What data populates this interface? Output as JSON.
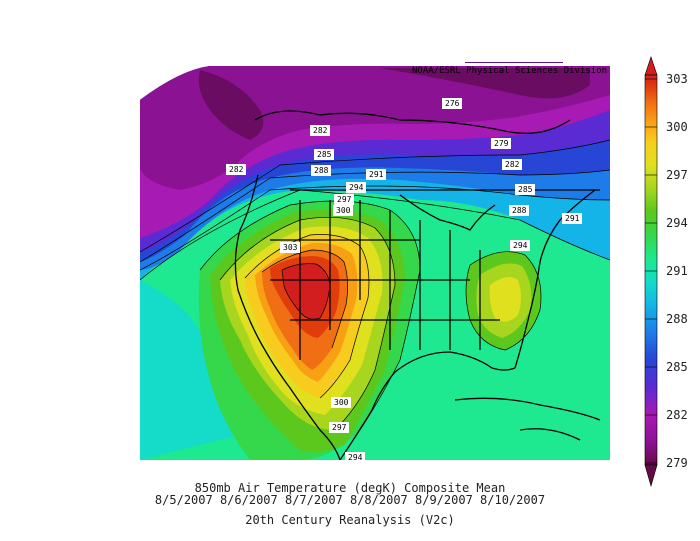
{
  "attribution": "NOAA/ESRL Physical Sciences Division",
  "caption": {
    "line1": "850mb Air Temperature (degK) Composite Mean",
    "line2": "8/5/2007 8/6/2007 8/7/2007 8/8/2007 8/9/2007 8/10/2007",
    "line3": "20th Century Reanalysis (V2c)"
  },
  "colorbar": {
    "ticks": [
      "303",
      "300",
      "297",
      "294",
      "291",
      "288",
      "285",
      "282",
      "279"
    ],
    "colors": [
      "#7a0a46",
      "#7e1190",
      "#a21ab0",
      "#5a2ad0",
      "#2846d2",
      "#1e78e6",
      "#14b0e6",
      "#14d8c4",
      "#1ee890",
      "#34d84a",
      "#5ac81e",
      "#a8d61e",
      "#dce01e",
      "#f8d21e",
      "#f8a814",
      "#f47a14",
      "#e8460c",
      "#d21e1e"
    ],
    "units": "degK"
  },
  "contour_labels": [
    {
      "text": "276"
    },
    {
      "text": "279"
    },
    {
      "text": "282"
    },
    {
      "text": "282"
    },
    {
      "text": "282"
    },
    {
      "text": "285"
    },
    {
      "text": "285"
    },
    {
      "text": "288"
    },
    {
      "text": "288"
    },
    {
      "text": "291"
    },
    {
      "text": "291"
    },
    {
      "text": "294"
    },
    {
      "text": "294"
    },
    {
      "text": "294"
    },
    {
      "text": "297"
    },
    {
      "text": "297"
    },
    {
      "text": "300"
    },
    {
      "text": "300"
    },
    {
      "text": "303"
    }
  ]
}
